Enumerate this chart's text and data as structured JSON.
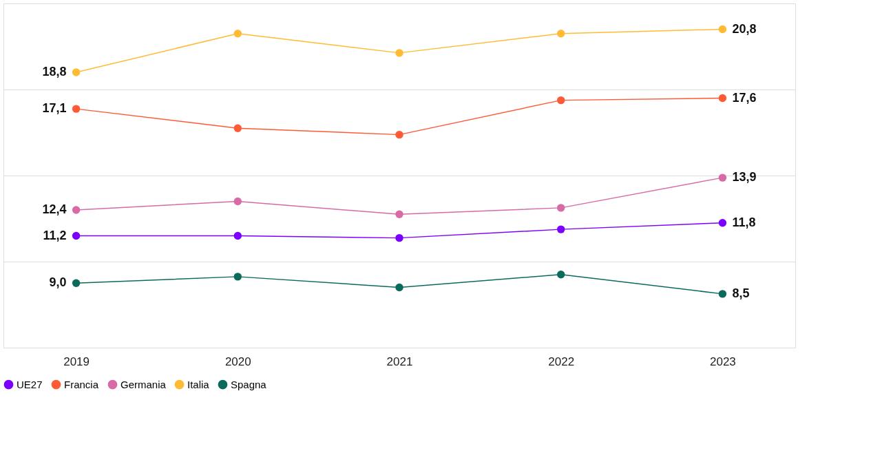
{
  "chart_data": {
    "type": "line",
    "categories": [
      "2019",
      "2020",
      "2021",
      "2022",
      "2023"
    ],
    "series": [
      {
        "name": "UE27",
        "color": "#7b00ff",
        "values": [
          11.2,
          11.2,
          11.1,
          11.5,
          11.8
        ],
        "value_labels": [
          "11,2",
          null,
          null,
          null,
          "11,8"
        ]
      },
      {
        "name": "Francia",
        "color": "#ff5a36",
        "values": [
          17.1,
          16.2,
          15.9,
          17.5,
          17.6
        ],
        "value_labels": [
          "17,1",
          null,
          null,
          null,
          "17,6"
        ]
      },
      {
        "name": "Germania",
        "color": "#d86aa5",
        "values": [
          12.4,
          12.8,
          12.2,
          12.5,
          13.9
        ],
        "value_labels": [
          "12,4",
          null,
          null,
          null,
          "13,9"
        ]
      },
      {
        "name": "Italia",
        "color": "#ffbb33",
        "values": [
          18.8,
          20.6,
          19.7,
          20.6,
          20.8
        ],
        "value_labels": [
          "18,8",
          null,
          null,
          null,
          "20,8"
        ]
      },
      {
        "name": "Spagna",
        "color": "#0b6b5a",
        "values": [
          9.0,
          9.3,
          8.8,
          9.4,
          8.5
        ],
        "value_labels": [
          "9,0",
          null,
          null,
          null,
          "8,5"
        ]
      }
    ],
    "ylim": [
      6,
      22
    ],
    "yticks": [
      {
        "value": 6,
        "label": null
      },
      {
        "value": 10,
        "label": null
      },
      {
        "value": 14,
        "label": null
      },
      {
        "value": 18,
        "label": null
      },
      {
        "value": 22,
        "label": null
      }
    ],
    "grid": "y",
    "legend": "bottom",
    "tick_labels": "x",
    "marker": "circle",
    "line_style": "solid"
  }
}
